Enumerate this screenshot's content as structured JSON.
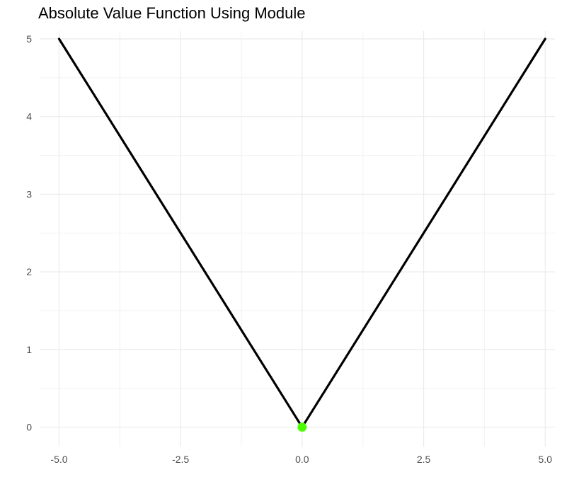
{
  "chart_data": {
    "type": "line",
    "title": "Absolute Value Function Using Module",
    "xlabel": "",
    "ylabel": "",
    "x": [
      -5.0,
      -2.5,
      0.0,
      2.5,
      5.0
    ],
    "series": [
      {
        "values": [
          5.0,
          2.5,
          0.0,
          2.5,
          5.0
        ],
        "color": "#000000"
      }
    ],
    "highlight_point": {
      "x": 0.0,
      "y": 0.0,
      "color": "#4cff00"
    },
    "x_ticks": [
      -5.0,
      -2.5,
      0.0,
      2.5,
      5.0
    ],
    "x_tick_labels": [
      "-5.0",
      "-2.5",
      "0.0",
      "2.5",
      "5.0"
    ],
    "y_ticks": [
      0,
      1,
      2,
      3,
      4,
      5
    ],
    "y_tick_labels": [
      "0",
      "1",
      "2",
      "3",
      "4",
      "5"
    ],
    "xlim": [
      -5.4,
      5.2
    ],
    "ylim": [
      -0.25,
      5.1
    ],
    "grid": true,
    "legend": "none"
  }
}
